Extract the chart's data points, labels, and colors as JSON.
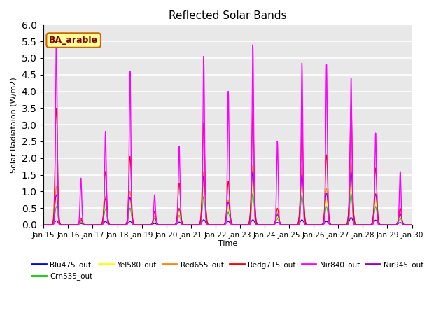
{
  "title": "Reflected Solar Bands",
  "xlabel": "Time",
  "ylabel": "Solar Radiataion (W/m2)",
  "annotation": "BA_arable",
  "ylim": [
    0,
    6.0
  ],
  "yticks": [
    0.0,
    0.5,
    1.0,
    1.5,
    2.0,
    2.5,
    3.0,
    3.5,
    4.0,
    4.5,
    5.0,
    5.5,
    6.0
  ],
  "xtick_labels": [
    "Jan 15",
    "Jan 16",
    "Jan 17",
    "Jan 18",
    "Jan 19",
    "Jan 20",
    "Jan 21",
    "Jan 22",
    "Jan 23",
    "Jan 24",
    "Jan 25",
    "Jan 26",
    "Jan 27",
    "Jan 28",
    "Jan 29",
    "Jan 30"
  ],
  "series_order": [
    "Blu475_out",
    "Grn535_out",
    "Yel580_out",
    "Red655_out",
    "Redg715_out",
    "Nir840_out",
    "Nir945_out"
  ],
  "series": {
    "Blu475_out": {
      "color": "#0000FF",
      "lw": 0.8
    },
    "Grn535_out": {
      "color": "#00CC00",
      "lw": 0.8
    },
    "Yel580_out": {
      "color": "#FFFF00",
      "lw": 0.8
    },
    "Red655_out": {
      "color": "#FF8800",
      "lw": 0.8
    },
    "Redg715_out": {
      "color": "#FF0000",
      "lw": 0.8
    },
    "Nir840_out": {
      "color": "#FF00FF",
      "lw": 1.0
    },
    "Nir945_out": {
      "color": "#9900CC",
      "lw": 0.8
    }
  },
  "peaks": {
    "Nir840_out": [
      5.7,
      1.4,
      2.8,
      4.6,
      0.9,
      2.35,
      5.05,
      4.0,
      5.4,
      2.5,
      4.85,
      4.8,
      4.4,
      2.75,
      1.6
    ],
    "Redg715_out": [
      3.5,
      0.2,
      1.6,
      2.05,
      0.4,
      1.25,
      3.05,
      1.3,
      3.35,
      0.5,
      2.9,
      2.1,
      3.6,
      1.7,
      0.5
    ],
    "Red655_out": [
      1.15,
      0.1,
      0.85,
      1.0,
      0.25,
      0.5,
      1.6,
      0.75,
      1.8,
      0.35,
      1.75,
      1.1,
      1.85,
      0.95,
      0.35
    ],
    "Yel580_out": [
      0.75,
      0.1,
      0.65,
      0.7,
      0.15,
      0.38,
      1.15,
      0.52,
      1.25,
      0.22,
      1.2,
      0.75,
      1.25,
      0.72,
      0.25
    ],
    "Grn535_out": [
      0.55,
      0.08,
      0.48,
      0.5,
      0.12,
      0.28,
      0.85,
      0.38,
      0.95,
      0.18,
      0.9,
      0.55,
      0.95,
      0.55,
      0.2
    ],
    "Nir945_out": [
      0.9,
      0.15,
      0.78,
      0.82,
      0.2,
      0.48,
      1.45,
      0.68,
      1.6,
      0.3,
      1.5,
      0.95,
      1.6,
      0.92,
      0.32
    ],
    "Blu475_out": [
      0.12,
      0.04,
      0.1,
      0.1,
      0.04,
      0.08,
      0.15,
      0.1,
      0.15,
      0.07,
      0.15,
      0.1,
      0.22,
      0.14,
      0.07
    ]
  },
  "widths": {
    "Nir840_out": 0.8,
    "Redg715_out": 1.2,
    "Red655_out": 1.3,
    "Yel580_out": 1.4,
    "Grn535_out": 1.35,
    "Nir945_out": 1.5,
    "Blu475_out": 1.6
  },
  "peak_hour": 12.5,
  "bg_color": "#E8E8E8",
  "grid_color": "#FFFFFF",
  "annotation_bg": "#FFFF99",
  "annotation_border": "#CC6600"
}
